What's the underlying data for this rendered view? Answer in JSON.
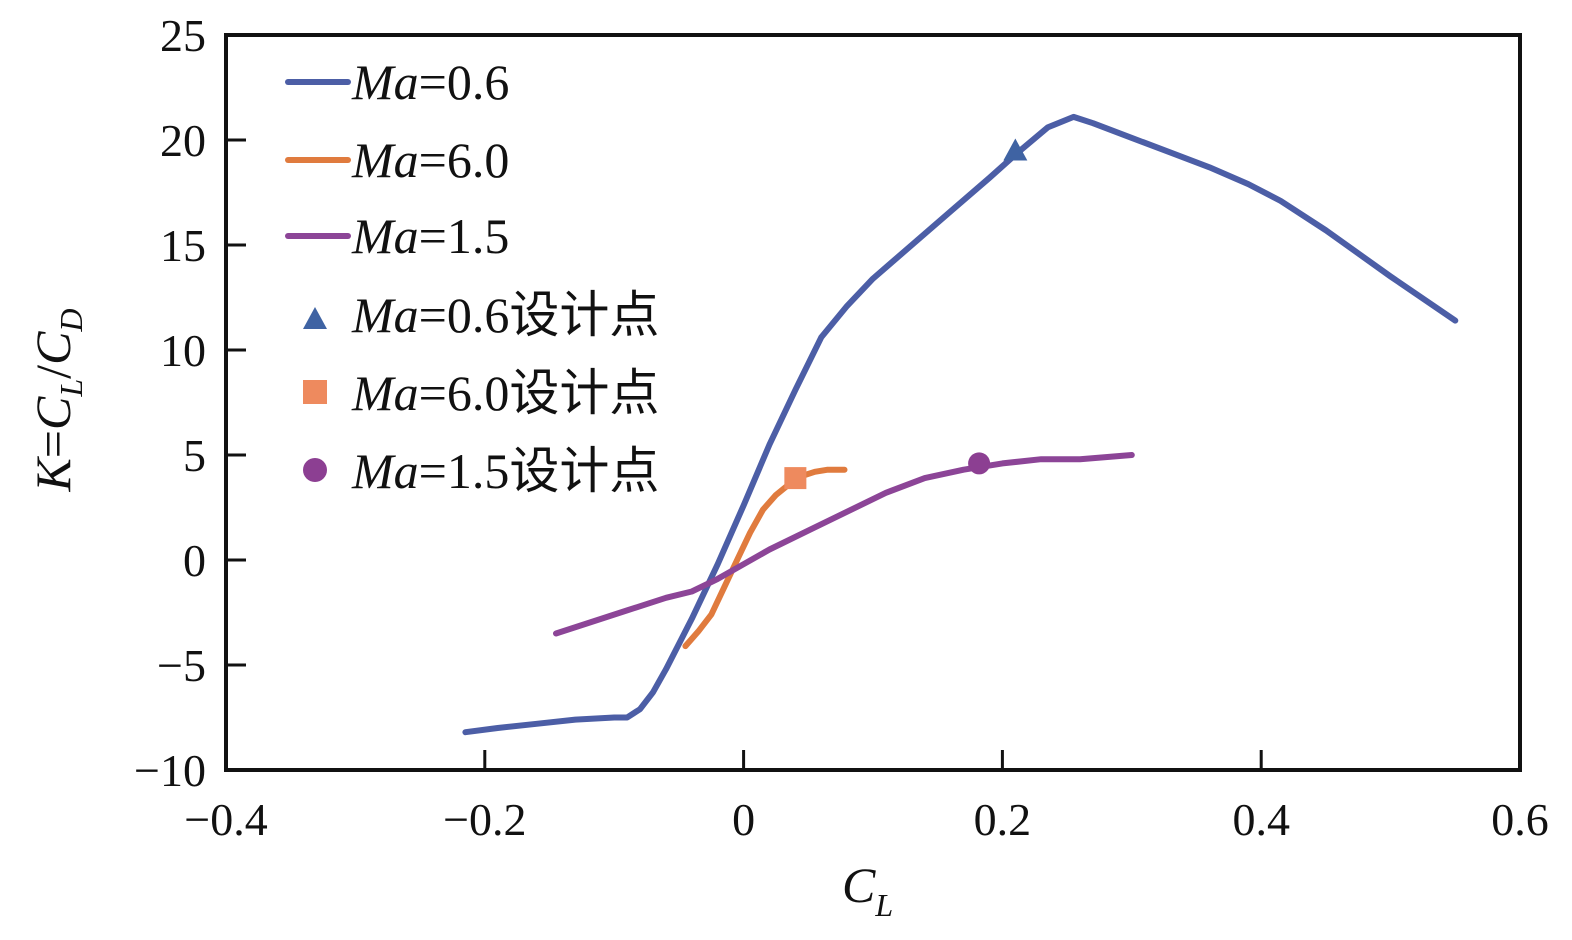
{
  "chart_data": {
    "type": "line",
    "title": "",
    "xlabel": {
      "main": "C",
      "sub": "L"
    },
    "ylabel": {
      "k": "K",
      "eq": "=",
      "c1": "C",
      "l": "L",
      "slash": "/",
      "c2": "C",
      "d": "D"
    },
    "xlim": [
      -0.4,
      0.6
    ],
    "ylim": [
      -10,
      25
    ],
    "xticks": [
      -0.4,
      -0.2,
      0,
      0.2,
      0.4,
      0.6
    ],
    "xtick_labels": [
      "−0.4",
      "−0.2",
      "0",
      "0.2",
      "0.4",
      "0.6"
    ],
    "yticks": [
      -10,
      -5,
      0,
      5,
      10,
      15,
      20,
      25
    ],
    "ytick_labels": [
      "−10",
      "−5",
      "0",
      "5",
      "10",
      "15",
      "20",
      "25"
    ],
    "grid": false,
    "legend_position": "top-left",
    "series": [
      {
        "name": "Ma=0.6",
        "ma_prefix": "Ma",
        "ma_value": "=0.6",
        "color": "#4c5ea6",
        "x": [
          -0.215,
          -0.19,
          -0.16,
          -0.13,
          -0.1,
          -0.09,
          -0.08,
          -0.07,
          -0.06,
          -0.04,
          -0.02,
          0,
          0.02,
          0.04,
          0.06,
          0.08,
          0.1,
          0.13,
          0.16,
          0.19,
          0.21,
          0.235,
          0.255,
          0.27,
          0.3,
          0.33,
          0.36,
          0.39,
          0.415,
          0.45,
          0.5,
          0.55
        ],
        "y": [
          -8.2,
          -8.0,
          -7.8,
          -7.6,
          -7.5,
          -7.5,
          -7.1,
          -6.3,
          -5.2,
          -2.8,
          -0.2,
          2.6,
          5.5,
          8.1,
          10.6,
          12.1,
          13.4,
          15.0,
          16.6,
          18.2,
          19.3,
          20.6,
          21.1,
          20.8,
          20.1,
          19.4,
          18.7,
          17.9,
          17.1,
          15.7,
          13.5,
          11.4
        ]
      },
      {
        "name": "Ma=6.0",
        "ma_prefix": "Ma",
        "ma_value": "=6.0",
        "color": "#e07b3e",
        "x": [
          -0.045,
          -0.035,
          -0.025,
          -0.015,
          -0.005,
          0.005,
          0.015,
          0.025,
          0.035,
          0.045,
          0.055,
          0.065,
          0.078
        ],
        "y": [
          -4.1,
          -3.4,
          -2.6,
          -1.3,
          0.0,
          1.3,
          2.4,
          3.1,
          3.6,
          4.0,
          4.2,
          4.3,
          4.3
        ]
      },
      {
        "name": "Ma=1.5",
        "ma_prefix": "Ma",
        "ma_value": "=1.5",
        "color": "#8c4597",
        "x": [
          -0.145,
          -0.12,
          -0.09,
          -0.06,
          -0.04,
          -0.02,
          0,
          0.02,
          0.05,
          0.08,
          0.11,
          0.14,
          0.17,
          0.2,
          0.23,
          0.26,
          0.3
        ],
        "y": [
          -3.5,
          -3.0,
          -2.4,
          -1.8,
          -1.5,
          -0.9,
          -0.2,
          0.5,
          1.4,
          2.3,
          3.2,
          3.9,
          4.3,
          4.6,
          4.8,
          4.8,
          5.0
        ]
      }
    ],
    "design_points": [
      {
        "name": "Ma=0.6设计点",
        "ma_prefix": "Ma",
        "ma_value": "=0.6",
        "suffix": "设计点",
        "marker": "triangle",
        "color": "#3f63a3",
        "x": 0.21,
        "y": 19.5
      },
      {
        "name": "Ma=6.0设计点",
        "ma_prefix": "Ma",
        "ma_value": "=6.0",
        "suffix": "设计点",
        "marker": "square",
        "color": "#ee8a5e",
        "x": 0.04,
        "y": 3.9
      },
      {
        "name": "Ma=1.5设计点",
        "ma_prefix": "Ma",
        "ma_value": "=1.5",
        "suffix": "设计点",
        "marker": "circle",
        "color": "#8c3f92",
        "x": 0.182,
        "y": 4.6
      }
    ]
  }
}
